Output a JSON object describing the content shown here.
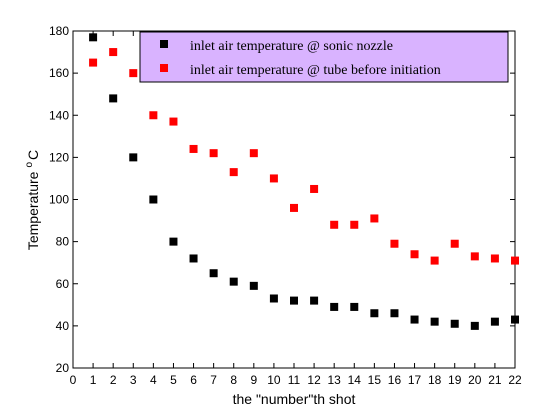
{
  "chart_data": {
    "type": "scatter",
    "xlabel": "the \"number\"th shot",
    "ylabel": "Temperature",
    "ylabel_superscript": "o",
    "ylabel_unit": "C",
    "xlim": [
      0,
      22
    ],
    "ylim": [
      20,
      180
    ],
    "xticks": [
      0,
      1,
      2,
      3,
      4,
      5,
      6,
      7,
      8,
      9,
      10,
      11,
      12,
      13,
      14,
      15,
      16,
      17,
      18,
      19,
      20,
      21,
      22
    ],
    "yticks": [
      20,
      40,
      60,
      80,
      100,
      120,
      140,
      160,
      180
    ],
    "grid": false,
    "legend_placement": "top-right",
    "legend_background": "#d9b3ff",
    "series": [
      {
        "name": "inlet air temperature @ sonic nozzle",
        "color": "#000000",
        "marker": "square",
        "x": [
          1,
          2,
          3,
          4,
          5,
          6,
          7,
          8,
          9,
          10,
          11,
          12,
          13,
          14,
          15,
          16,
          17,
          18,
          19,
          20,
          21,
          22
        ],
        "y": [
          177,
          148,
          120,
          100,
          80,
          72,
          65,
          61,
          59,
          53,
          52,
          52,
          49,
          49,
          46,
          46,
          43,
          42,
          41,
          40,
          42,
          43
        ]
      },
      {
        "name": "inlet air temperature @ tube before initiation",
        "color": "#ff0000",
        "marker": "square",
        "x": [
          1,
          2,
          3,
          4,
          5,
          6,
          7,
          8,
          9,
          10,
          11,
          12,
          13,
          14,
          15,
          16,
          17,
          18,
          19,
          20,
          21,
          22
        ],
        "y": [
          165,
          170,
          160,
          140,
          137,
          124,
          122,
          113,
          122,
          110,
          96,
          105,
          88,
          88,
          91,
          79,
          74,
          71,
          79,
          73,
          72,
          71
        ]
      }
    ]
  }
}
